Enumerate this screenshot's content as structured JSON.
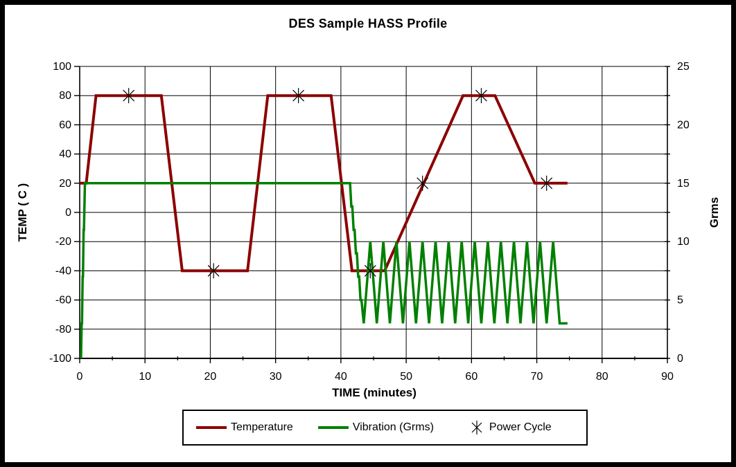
{
  "title": "DES Sample HASS Profile",
  "colors": {
    "temperature": "#8B0000",
    "vibration": "#008000",
    "power_cycle": "#000000",
    "grid": "#000000",
    "text": "#000000",
    "background": "#FFFFFF"
  },
  "legend": {
    "items": [
      {
        "label": "Temperature",
        "swatch": "line",
        "color": "#8B0000"
      },
      {
        "label": "Vibration (Grms)",
        "swatch": "line",
        "color": "#008000"
      },
      {
        "label": "Power Cycle",
        "swatch": "asterisk-marker",
        "color": "#000000"
      }
    ]
  },
  "chart_data": {
    "type": "line",
    "title": "DES Sample HASS Profile",
    "xlabel": "TIME (minutes)",
    "ylabel_left": "TEMP ( C )",
    "ylabel_right": "Grms",
    "grid": true,
    "x_axis": {
      "min": 0,
      "max": 90,
      "major_step": 10,
      "minor_step": 5,
      "tick_labels": [
        "0",
        "10",
        "20",
        "30",
        "40",
        "50",
        "60",
        "70",
        "80",
        "90"
      ]
    },
    "y_left": {
      "min": -100,
      "max": 100,
      "major_step": 20,
      "tick_labels": [
        "100",
        "80",
        "60",
        "40",
        "20",
        "0",
        "-20",
        "-40",
        "-60",
        "-80",
        "-100"
      ]
    },
    "y_right": {
      "min": 0,
      "max": 25,
      "label_step": 5,
      "tick_step": 2.5,
      "tick_labels": [
        "25",
        "20",
        "15",
        "10",
        "5",
        "0"
      ]
    },
    "series": [
      {
        "name": "Temperature",
        "axis": "left",
        "color": "#8B0000",
        "line_width": 4,
        "points": [
          [
            0,
            20
          ],
          [
            1,
            20
          ],
          [
            2.5,
            80
          ],
          [
            12.5,
            80
          ],
          [
            15.7,
            -40
          ],
          [
            25.7,
            -40
          ],
          [
            28.8,
            80
          ],
          [
            38.5,
            80
          ],
          [
            41.7,
            -40
          ],
          [
            46.7,
            -40
          ],
          [
            58.7,
            80
          ],
          [
            63.6,
            80
          ],
          [
            69.7,
            20
          ],
          [
            74.7,
            20
          ]
        ]
      },
      {
        "name": "Vibration (Grms)",
        "axis": "right",
        "color": "#008000",
        "line_width": 3.5,
        "points": [
          [
            0.2,
            0
          ],
          [
            0.3,
            3
          ],
          [
            0.35,
            3
          ],
          [
            0.45,
            7
          ],
          [
            0.5,
            7
          ],
          [
            0.6,
            11
          ],
          [
            0.65,
            11
          ],
          [
            0.8,
            15
          ],
          [
            41.4,
            15
          ],
          [
            41.6,
            13
          ],
          [
            41.75,
            13
          ],
          [
            41.95,
            11
          ],
          [
            42.1,
            11
          ],
          [
            42.3,
            9
          ],
          [
            42.45,
            9
          ],
          [
            42.65,
            7
          ],
          [
            42.8,
            7
          ],
          [
            43.0,
            5
          ],
          [
            43.15,
            5
          ],
          [
            43.5,
            3
          ]
        ],
        "oscillation": {
          "t_start": 43.5,
          "t_end": 73.5,
          "period": 2,
          "low": 3,
          "high": 10
        },
        "tail": [
          [
            73.5,
            3
          ],
          [
            74.7,
            3
          ]
        ]
      }
    ],
    "power_cycles": {
      "name": "Power Cycle",
      "axis": "left",
      "marker": "asterisk",
      "color": "#000000",
      "points": [
        [
          7.5,
          80
        ],
        [
          20.5,
          -40
        ],
        [
          33.5,
          80
        ],
        [
          44.5,
          -40
        ],
        [
          52.5,
          20
        ],
        [
          61.5,
          80
        ],
        [
          71.5,
          20
        ]
      ]
    }
  }
}
